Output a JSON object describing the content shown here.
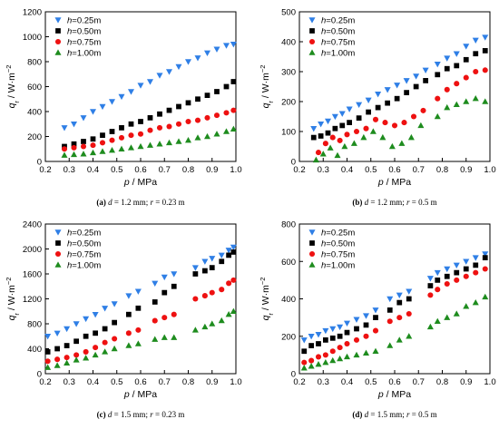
{
  "figure": {
    "panels": [
      {
        "caption": {
          "letter": "(a)",
          "var_d": "d",
          "rest_d": " = 1.2 mm; ",
          "var_r": "r",
          "rest_r": " = 0.23 m"
        },
        "chart_data": {
          "type": "scatter",
          "xlabel": {
            "sym": "p",
            "unit": " / MPa"
          },
          "ylabel": {
            "sym": "q",
            "sub": "r",
            "unit": " / W·m",
            "exp": "−2"
          },
          "xlim": [
            0.2,
            1.0
          ],
          "ylim": [
            0,
            1200
          ],
          "xticks": [
            "0.2",
            "0.3",
            "0.4",
            "0.5",
            "0.6",
            "0.7",
            "0.8",
            "0.9",
            "1.0"
          ],
          "yticks": [
            "0",
            "200",
            "400",
            "600",
            "800",
            "1000",
            "1200"
          ],
          "legend_position": "top-left",
          "series": [
            {
              "name": "h=0.25m",
              "x": [
                0.28,
                0.32,
                0.36,
                0.4,
                0.44,
                0.48,
                0.52,
                0.56,
                0.6,
                0.64,
                0.68,
                0.72,
                0.76,
                0.8,
                0.84,
                0.88,
                0.92,
                0.96,
                0.99
              ],
              "y": [
                270,
                300,
                350,
                400,
                440,
                480,
                520,
                560,
                610,
                640,
                690,
                720,
                760,
                800,
                830,
                870,
                900,
                930,
                940
              ]
            },
            {
              "name": "h=0.50m",
              "x": [
                0.28,
                0.32,
                0.36,
                0.4,
                0.44,
                0.48,
                0.52,
                0.56,
                0.6,
                0.64,
                0.68,
                0.72,
                0.76,
                0.8,
                0.84,
                0.88,
                0.92,
                0.96,
                0.99
              ],
              "y": [
                120,
                140,
                160,
                180,
                210,
                240,
                270,
                300,
                320,
                350,
                380,
                410,
                440,
                470,
                500,
                530,
                560,
                600,
                640
              ]
            },
            {
              "name": "h=0.75m",
              "x": [
                0.28,
                0.32,
                0.36,
                0.4,
                0.44,
                0.48,
                0.52,
                0.56,
                0.6,
                0.64,
                0.68,
                0.72,
                0.76,
                0.8,
                0.84,
                0.88,
                0.92,
                0.96,
                0.99
              ],
              "y": [
                100,
                110,
                120,
                130,
                150,
                170,
                190,
                210,
                220,
                250,
                270,
                280,
                300,
                320,
                330,
                350,
                370,
                390,
                410
              ]
            },
            {
              "name": "h=1.00m",
              "x": [
                0.28,
                0.32,
                0.36,
                0.4,
                0.44,
                0.48,
                0.52,
                0.56,
                0.6,
                0.64,
                0.68,
                0.72,
                0.76,
                0.8,
                0.84,
                0.88,
                0.92,
                0.96,
                0.99
              ],
              "y": [
                50,
                55,
                60,
                70,
                80,
                90,
                100,
                110,
                120,
                130,
                140,
                150,
                160,
                170,
                190,
                200,
                220,
                240,
                260
              ]
            }
          ]
        }
      },
      {
        "caption": {
          "letter": "(b)",
          "var_d": "d",
          "rest_d": " = 1.2 mm; ",
          "var_r": "r",
          "rest_r": " = 0.5 m"
        },
        "chart_data": {
          "type": "scatter",
          "xlabel": {
            "sym": "p",
            "unit": " / MPa"
          },
          "ylabel": {
            "sym": "q",
            "sub": "r",
            "unit": " / W·m",
            "exp": "−2"
          },
          "xlim": [
            0.2,
            1.0
          ],
          "ylim": [
            0,
            500
          ],
          "xticks": [
            "0.2",
            "0.3",
            "0.4",
            "0.5",
            "0.6",
            "0.7",
            "0.8",
            "0.9",
            "1.0"
          ],
          "yticks": [
            "0",
            "100",
            "200",
            "300",
            "400",
            "500"
          ],
          "legend_position": "top-left",
          "series": [
            {
              "name": "h=0.25m",
              "x": [
                0.26,
                0.29,
                0.32,
                0.35,
                0.38,
                0.41,
                0.45,
                0.49,
                0.53,
                0.57,
                0.61,
                0.65,
                0.69,
                0.73,
                0.78,
                0.82,
                0.86,
                0.9,
                0.94,
                0.98
              ],
              "y": [
                110,
                125,
                135,
                150,
                160,
                175,
                190,
                205,
                225,
                240,
                255,
                270,
                285,
                305,
                325,
                345,
                360,
                385,
                405,
                415
              ]
            },
            {
              "name": "h=0.50m",
              "x": [
                0.26,
                0.29,
                0.32,
                0.35,
                0.38,
                0.41,
                0.45,
                0.49,
                0.53,
                0.57,
                0.61,
                0.65,
                0.69,
                0.73,
                0.78,
                0.82,
                0.86,
                0.9,
                0.94,
                0.98
              ],
              "y": [
                80,
                85,
                95,
                110,
                120,
                130,
                145,
                165,
                180,
                195,
                210,
                230,
                250,
                270,
                290,
                310,
                320,
                340,
                360,
                370
              ]
            },
            {
              "name": "h=0.75m",
              "x": [
                0.28,
                0.31,
                0.34,
                0.37,
                0.4,
                0.44,
                0.48,
                0.52,
                0.56,
                0.6,
                0.64,
                0.68,
                0.72,
                0.78,
                0.82,
                0.86,
                0.9,
                0.94,
                0.98
              ],
              "y": [
                30,
                60,
                80,
                70,
                90,
                100,
                110,
                140,
                130,
                120,
                130,
                150,
                170,
                210,
                240,
                260,
                280,
                300,
                305
              ]
            },
            {
              "name": "h=1.00m",
              "x": [
                0.27,
                0.3,
                0.33,
                0.36,
                0.39,
                0.43,
                0.47,
                0.51,
                0.55,
                0.59,
                0.63,
                0.67,
                0.71,
                0.78,
                0.82,
                0.86,
                0.9,
                0.94,
                0.98
              ],
              "y": [
                5,
                25,
                45,
                20,
                50,
                60,
                80,
                100,
                80,
                50,
                60,
                80,
                120,
                150,
                180,
                190,
                200,
                210,
                200
              ]
            }
          ]
        }
      },
      {
        "caption": {
          "letter": "(c)",
          "var_d": "d",
          "rest_d": " = 1.5 mm; ",
          "var_r": "r",
          "rest_r": " = 0.23 m"
        },
        "chart_data": {
          "type": "scatter",
          "xlabel": {
            "sym": "p",
            "unit": " / MPa"
          },
          "ylabel": {
            "sym": "q",
            "sub": "r",
            "unit": " / W·m",
            "exp": "−2"
          },
          "xlim": [
            0.2,
            1.0
          ],
          "ylim": [
            0,
            2400
          ],
          "xticks": [
            "0.2",
            "0.3",
            "0.4",
            "0.5",
            "0.6",
            "0.7",
            "0.8",
            "0.9",
            "1.0"
          ],
          "yticks": [
            "0",
            "400",
            "800",
            "1200",
            "1600",
            "2000",
            "2400"
          ],
          "legend_position": "top-left",
          "series": [
            {
              "name": "h=0.25m",
              "x": [
                0.21,
                0.25,
                0.29,
                0.33,
                0.37,
                0.41,
                0.45,
                0.49,
                0.55,
                0.59,
                0.66,
                0.7,
                0.74,
                0.83,
                0.87,
                0.9,
                0.94,
                0.97,
                0.99
              ],
              "y": [
                600,
                650,
                720,
                800,
                880,
                950,
                1050,
                1120,
                1250,
                1320,
                1450,
                1550,
                1600,
                1700,
                1800,
                1850,
                1900,
                1980,
                2030
              ]
            },
            {
              "name": "h=0.50m",
              "x": [
                0.21,
                0.25,
                0.29,
                0.33,
                0.37,
                0.41,
                0.45,
                0.49,
                0.55,
                0.59,
                0.66,
                0.7,
                0.74,
                0.83,
                0.87,
                0.9,
                0.94,
                0.97,
                0.99
              ],
              "y": [
                350,
                400,
                450,
                520,
                600,
                650,
                720,
                820,
                950,
                1050,
                1150,
                1300,
                1400,
                1600,
                1650,
                1700,
                1800,
                1900,
                1950
              ]
            },
            {
              "name": "h=0.75m",
              "x": [
                0.21,
                0.25,
                0.29,
                0.33,
                0.37,
                0.41,
                0.45,
                0.49,
                0.55,
                0.59,
                0.66,
                0.7,
                0.74,
                0.83,
                0.87,
                0.9,
                0.94,
                0.97,
                0.99
              ],
              "y": [
                200,
                230,
                260,
                300,
                350,
                420,
                500,
                560,
                650,
                700,
                850,
                900,
                950,
                1200,
                1250,
                1300,
                1350,
                1450,
                1500
              ]
            },
            {
              "name": "h=1.00m",
              "x": [
                0.21,
                0.25,
                0.29,
                0.33,
                0.37,
                0.41,
                0.45,
                0.49,
                0.55,
                0.59,
                0.66,
                0.7,
                0.74,
                0.83,
                0.87,
                0.9,
                0.94,
                0.97,
                0.99
              ],
              "y": [
                100,
                130,
                170,
                220,
                250,
                300,
                350,
                400,
                450,
                480,
                550,
                580,
                580,
                700,
                750,
                800,
                850,
                950,
                1000
              ]
            }
          ]
        }
      },
      {
        "caption": {
          "letter": "(d)",
          "var_d": "d",
          "rest_d": " = 1.5 mm; ",
          "var_r": "r",
          "rest_r": " = 0.5 m"
        },
        "chart_data": {
          "type": "scatter",
          "xlabel": {
            "sym": "p",
            "unit": " / MPa"
          },
          "ylabel": {
            "sym": "q",
            "sub": "r",
            "unit": " / W·m",
            "exp": "−2"
          },
          "xlim": [
            0.2,
            1.0
          ],
          "ylim": [
            0,
            800
          ],
          "xticks": [
            "0.2",
            "0.3",
            "0.4",
            "0.5",
            "0.6",
            "0.7",
            "0.8",
            "0.9",
            "1.0"
          ],
          "yticks": [
            "0",
            "200",
            "400",
            "600",
            "800"
          ],
          "legend_position": "top-left",
          "series": [
            {
              "name": "h=0.25m",
              "x": [
                0.22,
                0.25,
                0.28,
                0.31,
                0.34,
                0.37,
                0.4,
                0.44,
                0.48,
                0.52,
                0.58,
                0.62,
                0.66,
                0.75,
                0.78,
                0.82,
                0.86,
                0.9,
                0.94,
                0.98
              ],
              "y": [
                180,
                200,
                210,
                230,
                240,
                250,
                270,
                290,
                310,
                340,
                400,
                420,
                440,
                510,
                540,
                560,
                580,
                600,
                620,
                640
              ]
            },
            {
              "name": "h=0.50m",
              "x": [
                0.22,
                0.25,
                0.28,
                0.31,
                0.34,
                0.37,
                0.4,
                0.44,
                0.48,
                0.52,
                0.58,
                0.62,
                0.66,
                0.75,
                0.78,
                0.82,
                0.86,
                0.9,
                0.94,
                0.98
              ],
              "y": [
                120,
                150,
                160,
                180,
                190,
                200,
                220,
                240,
                260,
                300,
                340,
                380,
                400,
                470,
                500,
                520,
                540,
                560,
                580,
                620
              ]
            },
            {
              "name": "h=0.75m",
              "x": [
                0.22,
                0.25,
                0.28,
                0.31,
                0.34,
                0.37,
                0.4,
                0.44,
                0.48,
                0.52,
                0.58,
                0.62,
                0.66,
                0.75,
                0.78,
                0.82,
                0.86,
                0.9,
                0.94,
                0.98
              ],
              "y": [
                60,
                70,
                90,
                100,
                120,
                140,
                160,
                180,
                200,
                230,
                280,
                300,
                320,
                420,
                450,
                480,
                500,
                520,
                540,
                560
              ]
            },
            {
              "name": "h=1.00m",
              "x": [
                0.22,
                0.25,
                0.28,
                0.31,
                0.34,
                0.37,
                0.4,
                0.44,
                0.48,
                0.52,
                0.58,
                0.62,
                0.66,
                0.75,
                0.78,
                0.82,
                0.86,
                0.9,
                0.94,
                0.98
              ],
              "y": [
                30,
                40,
                50,
                60,
                70,
                80,
                90,
                100,
                110,
                120,
                150,
                180,
                200,
                250,
                280,
                300,
                320,
                360,
                380,
                410
              ]
            }
          ]
        }
      }
    ]
  },
  "style": {
    "colors": [
      "#2f7fe6",
      "#000000",
      "#ee1111",
      "#1e8c1e"
    ],
    "markers": [
      "triangle-down",
      "square",
      "circle",
      "triangle-up"
    ]
  }
}
